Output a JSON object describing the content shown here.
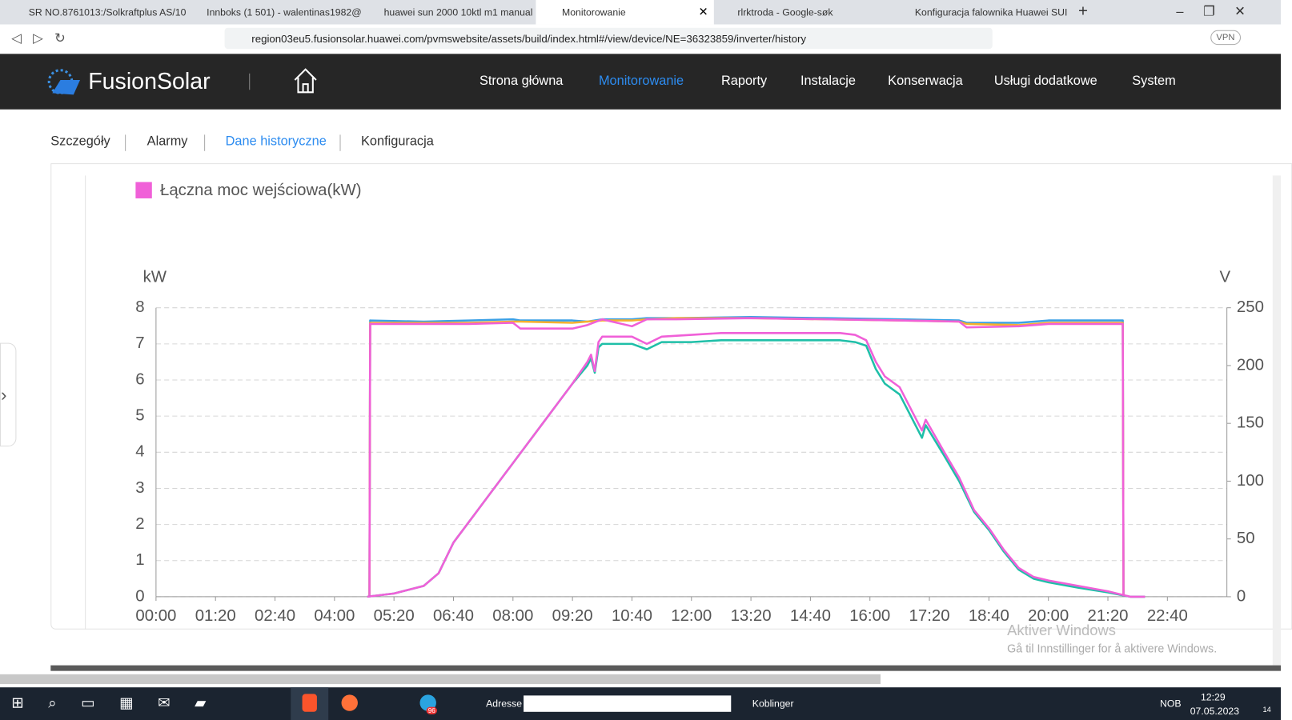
{
  "browser": {
    "tabs": [
      "SR NO.8761013:/Solkraftplus AS/10",
      "Innboks (1 501) - walentinas1982@",
      "huawei sun 2000 10ktl m1 manual",
      "Monitorowanie",
      "rlrktroda - Google-søk",
      "Konfiguracja falownika Huawei SUI"
    ],
    "address": "region03eu5.fusionsolar.huawei.com/pvmswebsite/assets/build/index.html#/view/device/NE=36323859/inverter/history",
    "vpn": "VPN"
  },
  "header": {
    "logo": "FusionSolar",
    "nav": [
      "Strona główna",
      "Monitorowanie",
      "Raporty",
      "Instalacje",
      "Konserwacja",
      "Usługi dodatkowe",
      "System"
    ]
  },
  "subnav": [
    "Szczegóły",
    "Alarmy",
    "Dane historyczne",
    "Konfiguracja"
  ],
  "chart_data": {
    "type": "line",
    "y_label": "kW",
    "y2_label": "V",
    "xlim": [
      0,
      1440
    ],
    "xticks": [
      {
        "value": 0,
        "label": "00:00"
      },
      {
        "value": 80,
        "label": "01:20"
      },
      {
        "value": 160,
        "label": "02:40"
      },
      {
        "value": 240,
        "label": "04:00"
      },
      {
        "value": 320,
        "label": "05:20"
      },
      {
        "value": 400,
        "label": "06:40"
      },
      {
        "value": 480,
        "label": "08:00"
      },
      {
        "value": 560,
        "label": "09:20"
      },
      {
        "value": 640,
        "label": "10:40"
      },
      {
        "value": 720,
        "label": "12:00"
      },
      {
        "value": 800,
        "label": "13:20"
      },
      {
        "value": 880,
        "label": "14:40"
      },
      {
        "value": 960,
        "label": "16:00"
      },
      {
        "value": 1040,
        "label": "17:20"
      },
      {
        "value": 1120,
        "label": "18:40"
      },
      {
        "value": 1200,
        "label": "20:00"
      },
      {
        "value": 1280,
        "label": "21:20"
      },
      {
        "value": 1360,
        "label": "22:40"
      }
    ],
    "ylim": [
      0,
      8
    ],
    "yticks": [
      0,
      1,
      2,
      3,
      4,
      5,
      6,
      7,
      8
    ],
    "y2lim": [
      0,
      250
    ],
    "y2ticks": [
      0,
      50,
      100,
      150,
      200,
      250
    ],
    "grid": true,
    "series": [
      {
        "color": "#3aa0e6",
        "axis": "y2",
        "x": [
          287,
          288,
          360,
          420,
          480,
          490,
          560,
          580,
          600,
          640,
          660,
          700,
          800,
          900,
          1000,
          1080,
          1090,
          1160,
          1200,
          1300,
          1301
        ],
        "values": [
          0,
          239,
          238,
          239,
          240,
          239,
          239,
          238,
          240,
          240,
          241,
          241,
          242,
          241,
          240,
          239,
          237,
          237,
          239,
          239,
          0
        ]
      },
      {
        "color": "#f5b02e",
        "axis": "y2",
        "x": [
          287,
          288,
          360,
          420,
          480,
          490,
          560,
          580,
          600,
          640,
          660,
          700,
          800,
          900,
          1000,
          1080,
          1090,
          1160,
          1200,
          1300,
          1301
        ],
        "values": [
          0,
          237,
          237,
          237,
          238,
          238,
          237,
          238,
          239,
          239,
          240,
          241,
          241,
          240,
          239,
          238,
          236,
          235,
          237,
          237,
          0
        ]
      },
      {
        "color": "#f060d8",
        "axis": "y2",
        "x": [
          287,
          288,
          360,
          420,
          480,
          490,
          560,
          580,
          600,
          640,
          660,
          700,
          800,
          900,
          1000,
          1080,
          1090,
          1160,
          1200,
          1300,
          1301
        ],
        "values": [
          0,
          236,
          236,
          236,
          237,
          232,
          232,
          235,
          240,
          234,
          240,
          240,
          241,
          240,
          239,
          238,
          233,
          234,
          236,
          236,
          0
        ]
      },
      {
        "color": "#1fbfa8",
        "x": [
          284,
          320,
          360,
          380,
          400,
          440,
          480,
          520,
          560,
          580,
          585,
          590,
          595,
          600,
          640,
          660,
          680,
          720,
          760,
          800,
          840,
          880,
          920,
          940,
          955,
          968,
          980,
          1000,
          1020,
          1030,
          1035,
          1060,
          1080,
          1100,
          1120,
          1140,
          1160,
          1180,
          1200,
          1240,
          1280,
          1300,
          1310,
          1330
        ],
        "values": [
          0,
          0.09,
          0.3,
          0.65,
          1.5,
          2.6,
          3.7,
          4.8,
          5.9,
          6.4,
          6.6,
          6.2,
          6.9,
          7.0,
          7.0,
          6.85,
          7.05,
          7.05,
          7.1,
          7.1,
          7.1,
          7.1,
          7.1,
          7.05,
          6.95,
          6.3,
          5.9,
          5.6,
          4.8,
          4.4,
          4.75,
          3.9,
          3.2,
          2.35,
          1.85,
          1.25,
          0.75,
          0.5,
          0.4,
          0.25,
          0.12,
          0.04,
          0,
          0
        ]
      },
      {
        "name": "Łączna moc wejściowa(kW)",
        "color": "#f060d8",
        "x": [
          284,
          320,
          360,
          380,
          400,
          440,
          480,
          520,
          560,
          580,
          585,
          590,
          595,
          600,
          640,
          660,
          680,
          720,
          760,
          800,
          840,
          880,
          920,
          940,
          955,
          968,
          980,
          1000,
          1020,
          1030,
          1035,
          1060,
          1080,
          1100,
          1120,
          1140,
          1160,
          1180,
          1200,
          1240,
          1280,
          1300,
          1310,
          1330
        ],
        "values": [
          0,
          0.09,
          0.3,
          0.65,
          1.5,
          2.6,
          3.7,
          4.8,
          5.9,
          6.5,
          6.7,
          6.25,
          7.05,
          7.2,
          7.2,
          7.0,
          7.2,
          7.25,
          7.3,
          7.3,
          7.3,
          7.3,
          7.3,
          7.25,
          7.1,
          6.5,
          6.1,
          5.8,
          5.0,
          4.6,
          4.9,
          4.0,
          3.3,
          2.4,
          1.9,
          1.3,
          0.8,
          0.55,
          0.45,
          0.3,
          0.15,
          0.05,
          0,
          0
        ]
      }
    ]
  },
  "watermark": {
    "title": "Aktiver Windows",
    "text": "Gå til Innstillinger for å aktivere Windows."
  },
  "taskbar": {
    "telegram_badge": "96",
    "address_label": "Adresse",
    "links": "Koblinger",
    "language": "NOB",
    "time": "12:29",
    "date": "07.05.2023",
    "notifications": "14"
  }
}
